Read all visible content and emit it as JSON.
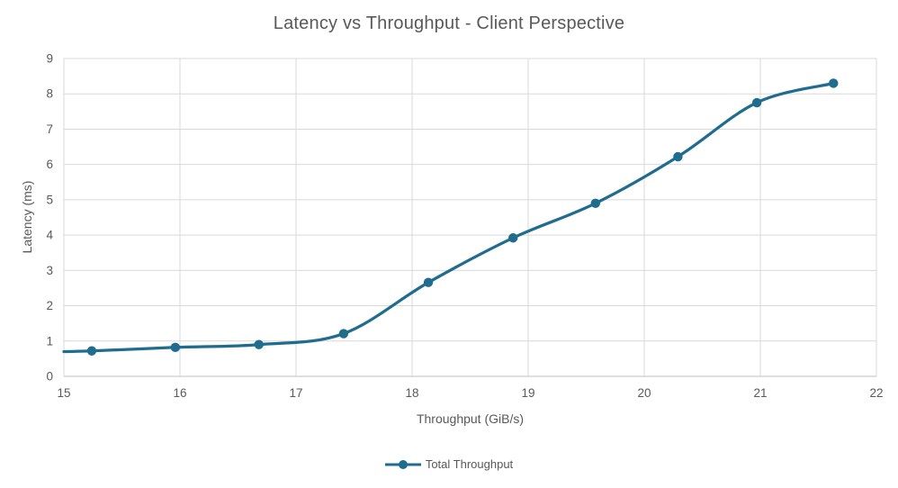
{
  "chart_data": {
    "type": "line",
    "title": "Latency vs Throughput - Client Perspective",
    "xlabel": "Throughput (GiB/s)",
    "ylabel": "Latency (ms)",
    "xlim": [
      15,
      22
    ],
    "ylim": [
      0,
      9
    ],
    "x_ticks": [
      15,
      16,
      17,
      18,
      19,
      20,
      21,
      22
    ],
    "y_ticks": [
      0,
      1,
      2,
      3,
      4,
      5,
      6,
      7,
      8,
      9
    ],
    "grid": true,
    "legend_position": "bottom-center",
    "colors": {
      "series": "#1f6c8f",
      "gridline": "#d9d9d9",
      "axis_line": "#bfbfbf",
      "text": "#595959"
    },
    "series": [
      {
        "name": "Total Throughput",
        "color": "#1f6c8f",
        "marker": "circle",
        "smooth": true,
        "line_start_at_axis": [
          15.0,
          0.7
        ],
        "points": [
          [
            15.24,
            0.72
          ],
          [
            15.96,
            0.82
          ],
          [
            16.68,
            0.9
          ],
          [
            17.41,
            1.21
          ],
          [
            18.14,
            2.66
          ],
          [
            18.87,
            3.92
          ],
          [
            19.58,
            4.9
          ],
          [
            20.29,
            6.22
          ],
          [
            20.97,
            7.75
          ],
          [
            21.63,
            8.3
          ]
        ]
      }
    ]
  }
}
